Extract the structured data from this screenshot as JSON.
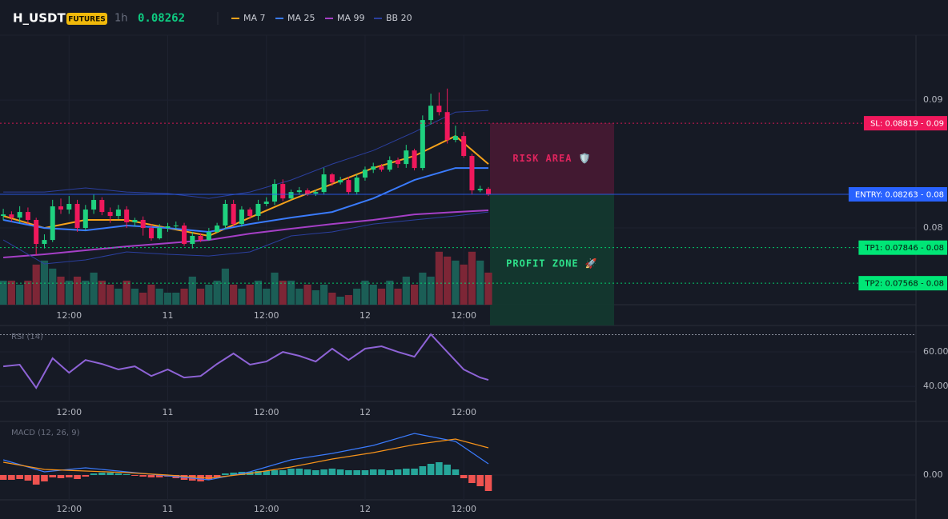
{
  "header": {
    "symbol": "H_USDT",
    "badge": "FUTURES",
    "timeframe": "1h",
    "price": 0.08262
  },
  "chart_data": [
    {
      "type": "candlestick",
      "xlim": [
        -0.4,
        111
      ],
      "ylim": [
        0.074,
        0.0947
      ],
      "yticks": [
        0.09,
        0.08
      ],
      "xticks": [
        {
          "value": 8,
          "label": "12:00"
        },
        {
          "value": 20,
          "label": "11"
        },
        {
          "value": 32,
          "label": "12:00"
        },
        {
          "value": 44,
          "label": "12"
        },
        {
          "value": 56,
          "label": "12:00"
        }
      ],
      "grid": true,
      "up_color": "#1fd17f",
      "down_color": "#f0185c",
      "open": [
        0.08094,
        0.08106,
        0.08081,
        0.08125,
        0.08063,
        0.07875,
        0.07906,
        0.08169,
        0.08144,
        0.08188,
        0.08,
        0.08144,
        0.08219,
        0.08125,
        0.08094,
        0.08144,
        0.08044,
        0.08063,
        0.08,
        0.07919,
        0.08,
        0.08013,
        0.08019,
        0.07875,
        0.07938,
        0.07906,
        0.07969,
        0.08019,
        0.08188,
        0.08031,
        0.08144,
        0.08094,
        0.08188,
        0.08206,
        0.08344,
        0.08231,
        0.08281,
        0.08294,
        0.08269,
        0.08281,
        0.08419,
        0.08356,
        0.08375,
        0.08281,
        0.08394,
        0.08456,
        0.08481,
        0.08456,
        0.08531,
        0.085,
        0.08606,
        0.08469,
        0.08844,
        0.08956,
        0.08906,
        0.08688,
        0.08719,
        0.08563,
        0.08294,
        0.08306
      ],
      "high": [
        0.0815,
        0.0813,
        0.0817,
        0.0816,
        0.0808,
        0.0795,
        0.0822,
        0.0823,
        0.0825,
        0.0822,
        0.0818,
        0.0826,
        0.0824,
        0.0816,
        0.0818,
        0.0817,
        0.0808,
        0.0809,
        0.0803,
        0.0803,
        0.0804,
        0.0805,
        0.0804,
        0.0797,
        0.0796,
        0.08,
        0.0804,
        0.0822,
        0.0822,
        0.0817,
        0.0816,
        0.0822,
        0.0824,
        0.0838,
        0.0838,
        0.083,
        0.0832,
        0.0831,
        0.083,
        0.0847,
        0.0843,
        0.084,
        0.084,
        0.0842,
        0.0848,
        0.0851,
        0.085,
        0.0856,
        0.0855,
        0.0865,
        0.0862,
        0.0888,
        0.0905,
        0.0906,
        0.0909,
        0.088,
        0.0875,
        0.0858,
        0.0833,
        0.0832
      ],
      "low": [
        0.0806,
        0.0805,
        0.0804,
        0.0803,
        0.0779,
        0.0784,
        0.0789,
        0.0811,
        0.0811,
        0.0797,
        0.0798,
        0.0811,
        0.081,
        0.0804,
        0.0807,
        0.08,
        0.0801,
        0.0794,
        0.079,
        0.0791,
        0.0797,
        0.0799,
        0.0786,
        0.0784,
        0.0789,
        0.079,
        0.0796,
        0.0799,
        0.0801,
        0.0801,
        0.0807,
        0.0806,
        0.0817,
        0.0818,
        0.0821,
        0.0822,
        0.0826,
        0.0825,
        0.0825,
        0.0826,
        0.0833,
        0.0834,
        0.0826,
        0.0826,
        0.0837,
        0.0843,
        0.0844,
        0.0844,
        0.0847,
        0.0847,
        0.0845,
        0.0845,
        0.0881,
        0.0888,
        0.0866,
        0.0867,
        0.0855,
        0.0826,
        0.0828,
        0.0825
      ],
      "close": [
        0.08106,
        0.08081,
        0.08125,
        0.08063,
        0.07875,
        0.07906,
        0.08169,
        0.08144,
        0.08188,
        0.08,
        0.08144,
        0.08219,
        0.08125,
        0.08094,
        0.08144,
        0.08044,
        0.08063,
        0.08,
        0.07919,
        0.08,
        0.08013,
        0.08019,
        0.07875,
        0.07938,
        0.07906,
        0.07969,
        0.08019,
        0.08188,
        0.08031,
        0.08144,
        0.08094,
        0.08188,
        0.08206,
        0.08344,
        0.08231,
        0.08281,
        0.08294,
        0.08269,
        0.08281,
        0.08419,
        0.08356,
        0.08375,
        0.08281,
        0.08394,
        0.08456,
        0.08481,
        0.08456,
        0.08531,
        0.085,
        0.08606,
        0.08469,
        0.08844,
        0.08956,
        0.08906,
        0.08688,
        0.08719,
        0.08563,
        0.08294,
        0.08306,
        0.08263
      ],
      "volume": [
        30,
        30,
        25,
        30,
        50,
        55,
        45,
        35,
        30,
        35,
        30,
        40,
        30,
        25,
        20,
        30,
        20,
        15,
        25,
        20,
        15,
        15,
        20,
        35,
        20,
        25,
        30,
        45,
        25,
        20,
        25,
        30,
        20,
        40,
        30,
        30,
        20,
        25,
        18,
        25,
        15,
        10,
        12,
        20,
        30,
        25,
        20,
        30,
        20,
        35,
        25,
        40,
        35,
        66,
        60,
        55,
        50,
        66,
        55,
        40
      ],
      "volume_ylim": [
        0,
        330
      ],
      "series": [
        {
          "name": "MA 7",
          "color": "#f7a21b",
          "x": [
            0,
            5,
            10,
            15,
            20,
            25,
            30,
            35,
            40,
            45,
            50,
            55,
            59
          ],
          "values": [
            0.08094,
            0.08,
            0.08063,
            0.08063,
            0.08,
            0.07938,
            0.08081,
            0.08219,
            0.08344,
            0.08469,
            0.08563,
            0.08719,
            0.085
          ]
        },
        {
          "name": "MA 25",
          "color": "#3a7bfd",
          "x": [
            0,
            5,
            10,
            15,
            20,
            25,
            30,
            35,
            40,
            45,
            50,
            55,
            59
          ],
          "values": [
            0.08063,
            0.08,
            0.07981,
            0.08019,
            0.08,
            0.07969,
            0.08031,
            0.08081,
            0.08125,
            0.08231,
            0.08375,
            0.08469,
            0.08469
          ]
        },
        {
          "name": "MA 99",
          "color": "#a53fc6",
          "x": [
            0,
            5,
            10,
            15,
            20,
            25,
            30,
            35,
            40,
            45,
            50,
            55,
            59
          ],
          "values": [
            0.07769,
            0.07794,
            0.07825,
            0.07856,
            0.07881,
            0.07906,
            0.07956,
            0.07994,
            0.08031,
            0.08063,
            0.08106,
            0.08125,
            0.08138
          ]
        },
        {
          "name": "BB 20",
          "color": "#2b3f9e",
          "x": [
            0,
            5,
            10,
            15,
            20,
            25,
            30,
            35,
            40,
            45,
            50,
            55,
            59
          ],
          "values": [
            0.08281,
            0.08281,
            0.08313,
            0.08281,
            0.08269,
            0.08231,
            0.08281,
            0.08375,
            0.085,
            0.08606,
            0.0875,
            0.08906,
            0.08919
          ],
          "lower": [
            0.07906,
            0.07719,
            0.0775,
            0.07813,
            0.07794,
            0.07781,
            0.07813,
            0.07938,
            0.07969,
            0.08031,
            0.08063,
            0.08094,
            0.08125
          ]
        }
      ],
      "trade": {
        "sl": {
          "label": "SL: 0.08819 - 0.09",
          "value": 0.08819,
          "color": "#f0185c"
        },
        "entry": {
          "label": "ENTRY: 0.08263 - 0.08",
          "value": 0.08263,
          "color": "#2962ff"
        },
        "tp1": {
          "label": "TP1: 0.07846 - 0.08",
          "value": 0.07846,
          "color": "#00e676"
        },
        "tp2": {
          "label": "TP2: 0.07568 - 0.08",
          "value": 0.07568,
          "color": "#00e676"
        },
        "risk_zone": {
          "label": "RISK AREA 🛡️",
          "color": "#e0245e"
        },
        "profit_zone": {
          "label": "PROFIT ZONE 🚀",
          "color": "#2ee08a"
        }
      }
    },
    {
      "type": "line",
      "title": "RSI (14)",
      "color": "#8e63d6",
      "xlim": [
        -0.4,
        111
      ],
      "ylim": [
        31.2,
        74.9
      ],
      "yticks": [
        {
          "value": 60,
          "label": "60.00"
        },
        {
          "value": 40,
          "label": "40.00"
        }
      ],
      "levels": [
        70
      ],
      "xticks": [
        {
          "value": 8,
          "label": "12:00"
        },
        {
          "value": 20,
          "label": "11"
        },
        {
          "value": 32,
          "label": "12:00"
        },
        {
          "value": 44,
          "label": "12"
        },
        {
          "value": 56,
          "label": "12:00"
        }
      ],
      "x": [
        0,
        2,
        4,
        6,
        8,
        10,
        12,
        14,
        16,
        18,
        20,
        22,
        24,
        26,
        28,
        30,
        32,
        34,
        36,
        38,
        40,
        42,
        44,
        46,
        48,
        50,
        52,
        54,
        56,
        58,
        59
      ],
      "values": [
        51.6,
        52.6,
        39.1,
        56.3,
        47.9,
        55.3,
        53,
        49.8,
        51.6,
        46,
        49.8,
        45.1,
        46,
        53,
        59.1,
        52.6,
        54.4,
        60,
        57.7,
        54.4,
        61.9,
        55.3,
        61.9,
        63.3,
        60,
        57.2,
        70.2,
        60,
        49.8,
        45.1,
        43.7
      ]
    },
    {
      "type": "macd",
      "title": "MACD (12, 26, 9)",
      "xlim": [
        -0.4,
        111
      ],
      "ylim": [
        -0.00031,
        0.00066
      ],
      "yticks": [
        {
          "value": 0,
          "label": "0.00"
        }
      ],
      "xticks": [
        {
          "value": 8,
          "label": "12:00"
        },
        {
          "value": 20,
          "label": "11"
        },
        {
          "value": 32,
          "label": "12:00"
        },
        {
          "value": 44,
          "label": "12"
        },
        {
          "value": 56,
          "label": "12:00"
        }
      ],
      "up_color": "#26a69a",
      "down_color": "#ef5350",
      "histogram": [
        -6e-05,
        -6e-05,
        -5e-05,
        -7e-05,
        -0.00012,
        -8e-05,
        -3e-05,
        -4e-05,
        -3e-05,
        -5e-05,
        -2e-05,
        2e-05,
        3e-05,
        3e-05,
        2e-05,
        1e-05,
        -1e-05,
        -2e-05,
        -3e-05,
        -3e-05,
        -2e-05,
        -4e-05,
        -6e-05,
        -7e-05,
        -8e-05,
        -6e-05,
        -3e-05,
        2e-05,
        3e-05,
        4e-05,
        4e-05,
        5e-05,
        5e-05,
        6e-05,
        6e-05,
        8e-05,
        8e-05,
        7e-05,
        6e-05,
        7e-05,
        8e-05,
        7e-05,
        6e-05,
        6e-05,
        6e-05,
        7e-05,
        7e-05,
        6e-05,
        7e-05,
        8e-05,
        8e-05,
        0.00011,
        0.00014,
        0.00016,
        0.00013,
        7e-05,
        -4e-05,
        -0.0001,
        -0.00014,
        -0.0002
      ],
      "series": [
        {
          "color": "#3a7bfd",
          "x": [
            0,
            5,
            10,
            15,
            20,
            25,
            30,
            35,
            40,
            45,
            50,
            55,
            59
          ],
          "values": [
            0.00019,
            4e-05,
            9e-05,
            4e-05,
            -1e-05,
            -6e-05,
            4e-05,
            0.00019,
            0.00027,
            0.00037,
            0.00052,
            0.00042,
            0.00014
          ]
        },
        {
          "color": "#f7931a",
          "x": [
            0,
            5,
            10,
            15,
            20,
            25,
            30,
            35,
            40,
            45,
            50,
            55,
            59
          ],
          "values": [
            0.00016,
            7e-05,
            5e-05,
            3e-05,
            0,
            -4e-05,
            2e-05,
            0.0001,
            0.0002,
            0.00028,
            0.00038,
            0.00045,
            0.00034
          ]
        }
      ]
    }
  ]
}
